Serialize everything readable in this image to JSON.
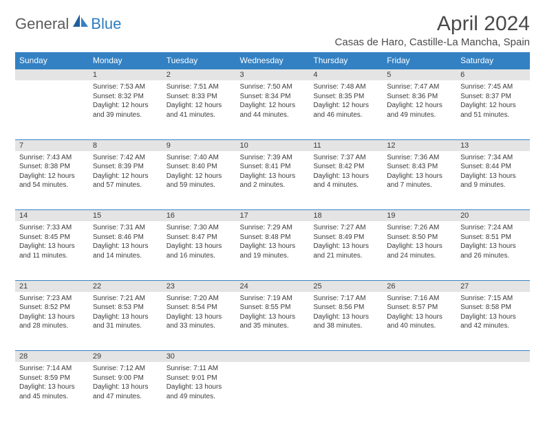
{
  "brand": {
    "part1": "General",
    "part2": "Blue"
  },
  "title": "April 2024",
  "location": "Casas de Haro, Castille-La Mancha, Spain",
  "colors": {
    "header_bg": "#3381c3",
    "header_text": "#ffffff",
    "daynum_bg": "#e4e4e4",
    "border": "#3381c3",
    "text": "#3a3a3a",
    "title_text": "#4a4a4a",
    "logo_gray": "#5a5a5a",
    "logo_blue": "#2b7bbf",
    "background": "#ffffff"
  },
  "fonts": {
    "title_size": 30,
    "location_size": 15,
    "dayhead_size": 12,
    "daynum_size": 11,
    "cell_size": 10
  },
  "dayNames": [
    "Sunday",
    "Monday",
    "Tuesday",
    "Wednesday",
    "Thursday",
    "Friday",
    "Saturday"
  ],
  "weeks": [
    {
      "nums": [
        "",
        "1",
        "2",
        "3",
        "4",
        "5",
        "6"
      ],
      "cells": [
        [],
        [
          "Sunrise: 7:53 AM",
          "Sunset: 8:32 PM",
          "Daylight: 12 hours",
          "and 39 minutes."
        ],
        [
          "Sunrise: 7:51 AM",
          "Sunset: 8:33 PM",
          "Daylight: 12 hours",
          "and 41 minutes."
        ],
        [
          "Sunrise: 7:50 AM",
          "Sunset: 8:34 PM",
          "Daylight: 12 hours",
          "and 44 minutes."
        ],
        [
          "Sunrise: 7:48 AM",
          "Sunset: 8:35 PM",
          "Daylight: 12 hours",
          "and 46 minutes."
        ],
        [
          "Sunrise: 7:47 AM",
          "Sunset: 8:36 PM",
          "Daylight: 12 hours",
          "and 49 minutes."
        ],
        [
          "Sunrise: 7:45 AM",
          "Sunset: 8:37 PM",
          "Daylight: 12 hours",
          "and 51 minutes."
        ]
      ]
    },
    {
      "nums": [
        "7",
        "8",
        "9",
        "10",
        "11",
        "12",
        "13"
      ],
      "cells": [
        [
          "Sunrise: 7:43 AM",
          "Sunset: 8:38 PM",
          "Daylight: 12 hours",
          "and 54 minutes."
        ],
        [
          "Sunrise: 7:42 AM",
          "Sunset: 8:39 PM",
          "Daylight: 12 hours",
          "and 57 minutes."
        ],
        [
          "Sunrise: 7:40 AM",
          "Sunset: 8:40 PM",
          "Daylight: 12 hours",
          "and 59 minutes."
        ],
        [
          "Sunrise: 7:39 AM",
          "Sunset: 8:41 PM",
          "Daylight: 13 hours",
          "and 2 minutes."
        ],
        [
          "Sunrise: 7:37 AM",
          "Sunset: 8:42 PM",
          "Daylight: 13 hours",
          "and 4 minutes."
        ],
        [
          "Sunrise: 7:36 AM",
          "Sunset: 8:43 PM",
          "Daylight: 13 hours",
          "and 7 minutes."
        ],
        [
          "Sunrise: 7:34 AM",
          "Sunset: 8:44 PM",
          "Daylight: 13 hours",
          "and 9 minutes."
        ]
      ]
    },
    {
      "nums": [
        "14",
        "15",
        "16",
        "17",
        "18",
        "19",
        "20"
      ],
      "cells": [
        [
          "Sunrise: 7:33 AM",
          "Sunset: 8:45 PM",
          "Daylight: 13 hours",
          "and 11 minutes."
        ],
        [
          "Sunrise: 7:31 AM",
          "Sunset: 8:46 PM",
          "Daylight: 13 hours",
          "and 14 minutes."
        ],
        [
          "Sunrise: 7:30 AM",
          "Sunset: 8:47 PM",
          "Daylight: 13 hours",
          "and 16 minutes."
        ],
        [
          "Sunrise: 7:29 AM",
          "Sunset: 8:48 PM",
          "Daylight: 13 hours",
          "and 19 minutes."
        ],
        [
          "Sunrise: 7:27 AM",
          "Sunset: 8:49 PM",
          "Daylight: 13 hours",
          "and 21 minutes."
        ],
        [
          "Sunrise: 7:26 AM",
          "Sunset: 8:50 PM",
          "Daylight: 13 hours",
          "and 24 minutes."
        ],
        [
          "Sunrise: 7:24 AM",
          "Sunset: 8:51 PM",
          "Daylight: 13 hours",
          "and 26 minutes."
        ]
      ]
    },
    {
      "nums": [
        "21",
        "22",
        "23",
        "24",
        "25",
        "26",
        "27"
      ],
      "cells": [
        [
          "Sunrise: 7:23 AM",
          "Sunset: 8:52 PM",
          "Daylight: 13 hours",
          "and 28 minutes."
        ],
        [
          "Sunrise: 7:21 AM",
          "Sunset: 8:53 PM",
          "Daylight: 13 hours",
          "and 31 minutes."
        ],
        [
          "Sunrise: 7:20 AM",
          "Sunset: 8:54 PM",
          "Daylight: 13 hours",
          "and 33 minutes."
        ],
        [
          "Sunrise: 7:19 AM",
          "Sunset: 8:55 PM",
          "Daylight: 13 hours",
          "and 35 minutes."
        ],
        [
          "Sunrise: 7:17 AM",
          "Sunset: 8:56 PM",
          "Daylight: 13 hours",
          "and 38 minutes."
        ],
        [
          "Sunrise: 7:16 AM",
          "Sunset: 8:57 PM",
          "Daylight: 13 hours",
          "and 40 minutes."
        ],
        [
          "Sunrise: 7:15 AM",
          "Sunset: 8:58 PM",
          "Daylight: 13 hours",
          "and 42 minutes."
        ]
      ]
    },
    {
      "nums": [
        "28",
        "29",
        "30",
        "",
        "",
        "",
        ""
      ],
      "cells": [
        [
          "Sunrise: 7:14 AM",
          "Sunset: 8:59 PM",
          "Daylight: 13 hours",
          "and 45 minutes."
        ],
        [
          "Sunrise: 7:12 AM",
          "Sunset: 9:00 PM",
          "Daylight: 13 hours",
          "and 47 minutes."
        ],
        [
          "Sunrise: 7:11 AM",
          "Sunset: 9:01 PM",
          "Daylight: 13 hours",
          "and 49 minutes."
        ],
        [],
        [],
        [],
        []
      ]
    }
  ]
}
